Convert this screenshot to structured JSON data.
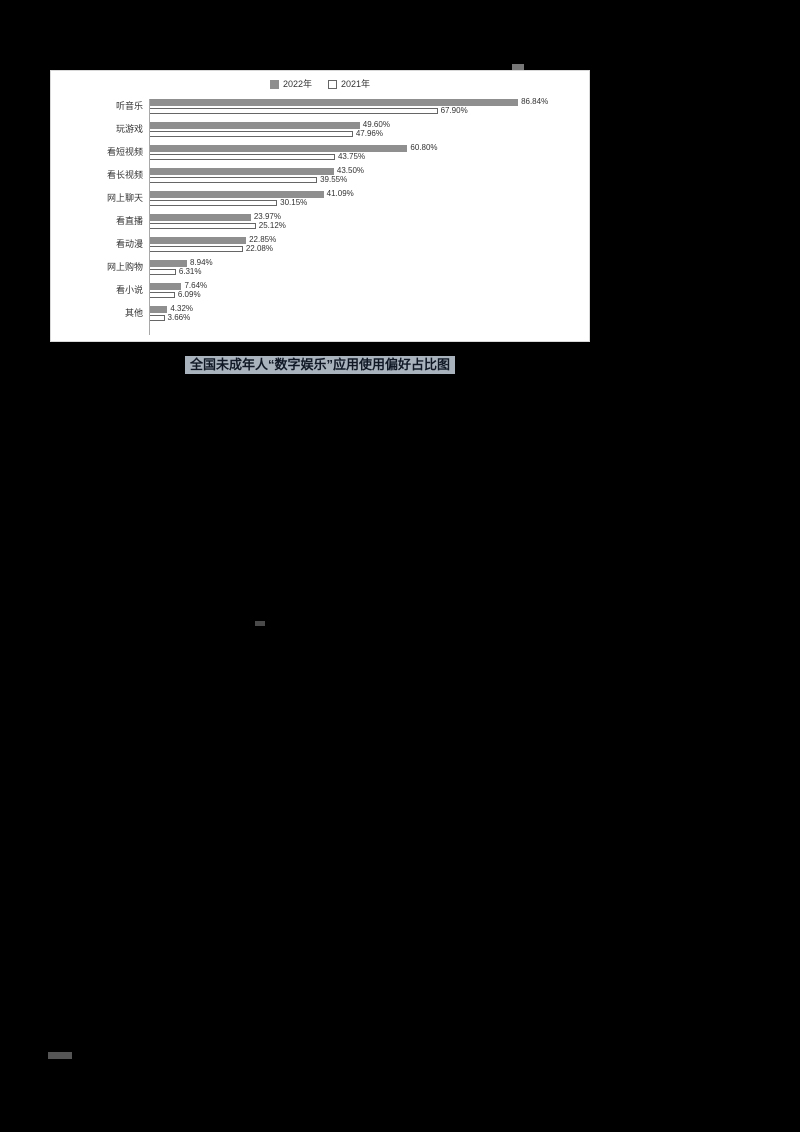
{
  "page": {
    "background": "#000000"
  },
  "figure": {
    "caption": "全国未成年人“数字娱乐”应用使用偏好占比图",
    "caption_highlight": "#a9b3bd"
  },
  "chart_data": {
    "type": "bar",
    "orientation": "horizontal",
    "title": "",
    "xlabel": "",
    "ylabel": "",
    "xlim": [
      0,
      100
    ],
    "value_suffix": "%",
    "grid": false,
    "legend_position": "top",
    "categories": [
      "听音乐",
      "玩游戏",
      "看短视频",
      "看长视频",
      "网上聊天",
      "看直播",
      "看动漫",
      "网上购物",
      "看小说",
      "其他"
    ],
    "series": [
      {
        "name": "2022年",
        "style": "solid",
        "color": "#8f8f8f",
        "values": [
          86.84,
          49.6,
          60.8,
          43.5,
          41.09,
          23.97,
          22.85,
          8.94,
          7.64,
          4.32
        ]
      },
      {
        "name": "2021年",
        "style": "outline",
        "color": "#ffffff",
        "values": [
          67.9,
          47.96,
          43.75,
          39.55,
          30.15,
          25.12,
          22.08,
          6.31,
          6.09,
          3.66
        ]
      }
    ]
  }
}
